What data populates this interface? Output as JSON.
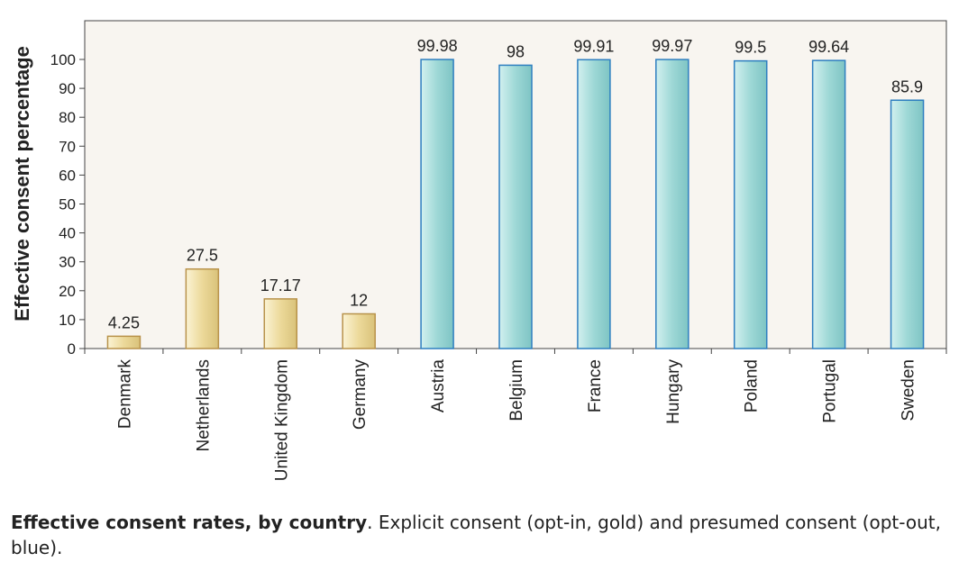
{
  "chart_data": {
    "type": "bar",
    "ylabel": "Effective consent percentage",
    "xlabel": "",
    "ylim": [
      0,
      100
    ],
    "yticks": [
      0,
      10,
      20,
      30,
      40,
      50,
      60,
      70,
      80,
      90,
      100
    ],
    "categories": [
      "Denmark",
      "Netherlands",
      "United Kingdom",
      "Germany",
      "Austria",
      "Belgium",
      "France",
      "Hungary",
      "Poland",
      "Portugal",
      "Sweden"
    ],
    "values": [
      4.25,
      27.5,
      17.17,
      12,
      99.98,
      98,
      99.91,
      99.97,
      99.5,
      99.64,
      85.9
    ],
    "value_labels": [
      "4.25",
      "27.5",
      "17.17",
      "12",
      "99.98",
      "98",
      "99.91",
      "99.97",
      "99.5",
      "99.64",
      "85.9"
    ],
    "groups": [
      "opt-in",
      "opt-in",
      "opt-in",
      "opt-in",
      "opt-out",
      "opt-out",
      "opt-out",
      "opt-out",
      "opt-out",
      "opt-out",
      "opt-out"
    ],
    "colors": {
      "opt-in": "#ecd99a",
      "opt-in-stroke": "#b8924a",
      "opt-out": "#9ed8d6",
      "opt-out-stroke": "#2e7fc0",
      "plot_background": "#f8f5f0"
    },
    "grid": false,
    "legend": "none"
  },
  "caption": {
    "bold": "Effective consent rates, by country",
    "rest": ". Explicit consent (opt-in, gold) and presumed consent (opt-out, blue)."
  }
}
